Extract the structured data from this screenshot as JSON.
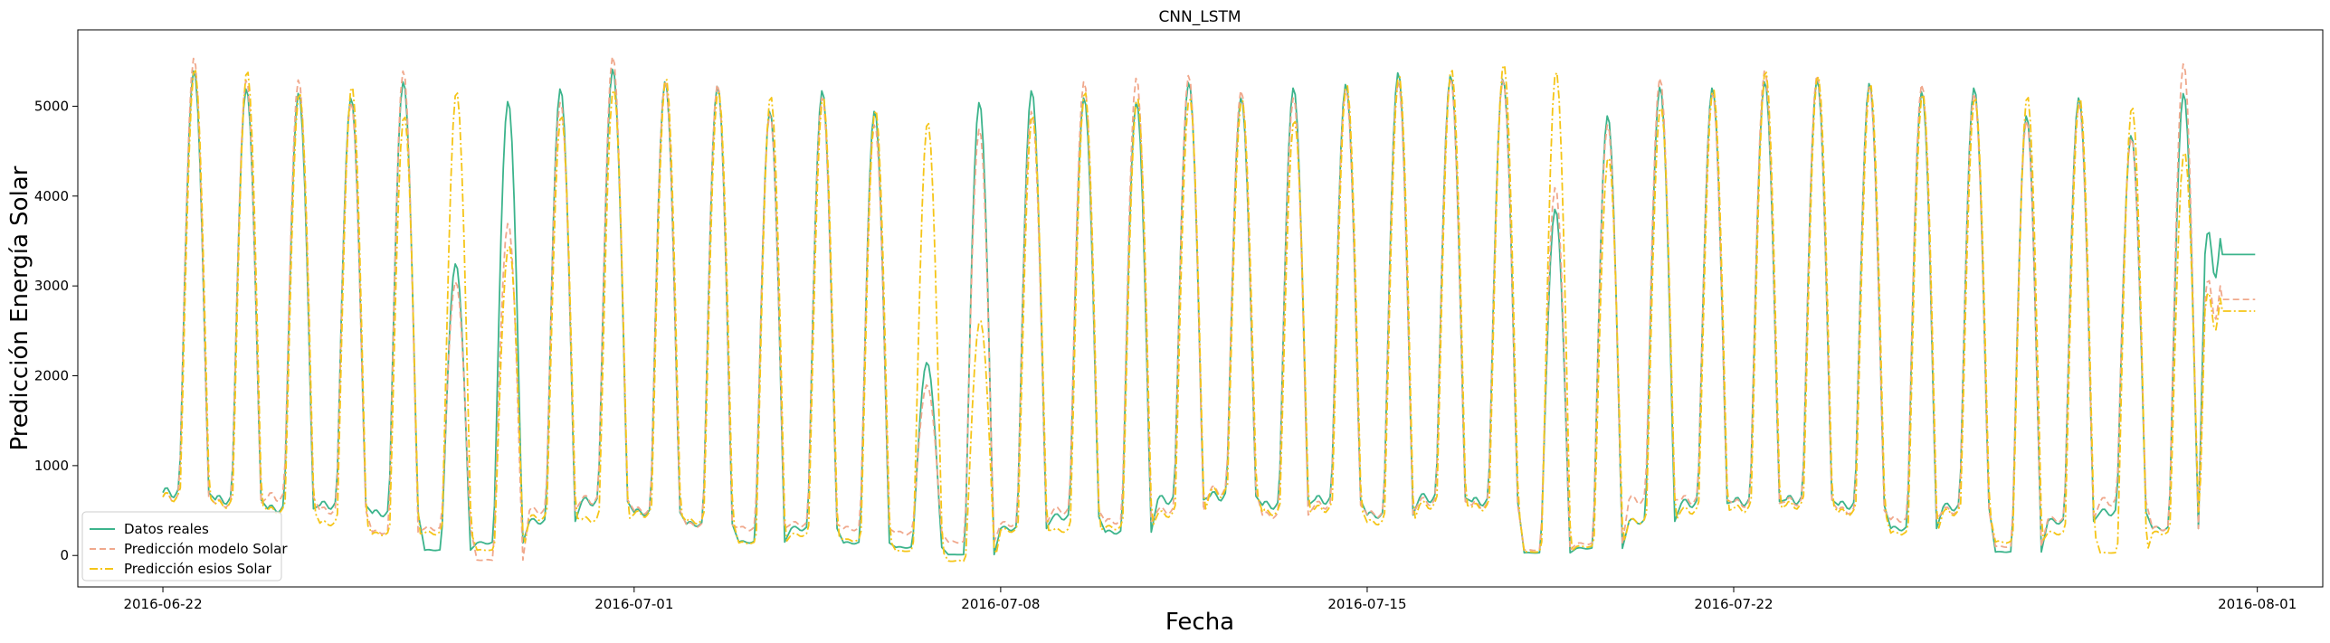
{
  "chart_data": {
    "type": "line",
    "title": "CNN_LSTM",
    "xlabel": "Fecha",
    "ylabel": "Predicción Energía Solar",
    "x_start": "2016-06-22 00:00",
    "x_end": "2016-07-31 23:00",
    "xlim": [
      "2016-06-20 09:00",
      "2016-08-02 06:00"
    ],
    "ylim": [
      -350,
      5850
    ],
    "x_ticks": [
      "2016-06-22",
      "2016-07-01",
      "2016-07-08",
      "2016-07-15",
      "2016-07-22",
      "2016-08-01"
    ],
    "y_ticks": [
      0,
      1000,
      2000,
      3000,
      4000,
      5000
    ],
    "grid": false,
    "legend_position": "lower-left",
    "series": [
      {
        "name": "Datos reales",
        "color": "#3cb48c",
        "style": "solid",
        "daily_peaks": [
          5400,
          5200,
          5150,
          5100,
          5280,
          3250,
          5060,
          5200,
          5420,
          5280,
          5230,
          4950,
          5180,
          4950,
          2150,
          5050,
          5180,
          5100,
          5050,
          5270,
          5100,
          5210,
          5250,
          5380,
          5350,
          5310,
          3860,
          4900,
          5220,
          5210,
          5280,
          5300,
          5260,
          5170,
          5210,
          4900,
          5100,
          4680,
          5150,
          3350
        ],
        "daily_minimums": [
          700,
          620,
          520,
          560,
          470,
          60,
          140,
          380,
          600,
          480,
          350,
          150,
          300,
          140,
          90,
          10,
          300,
          430,
          260,
          620,
          660,
          560,
          620,
          450,
          640,
          600,
          30,
          80,
          380,
          580,
          600,
          620,
          560,
          300,
          540,
          40,
          380,
          480,
          300,
          3350
        ]
      },
      {
        "name": "Predicción modelo Solar",
        "color": "#f0a88c",
        "style": "dashed",
        "daily_peaks": [
          5540,
          5300,
          5300,
          5050,
          5400,
          3050,
          3700,
          5050,
          5560,
          5290,
          5250,
          4920,
          5100,
          4800,
          1900,
          4750,
          4950,
          5280,
          5320,
          5350,
          5180,
          5100,
          5190,
          5280,
          5320,
          5300,
          4100,
          4800,
          5320,
          5150,
          5400,
          5350,
          5220,
          5250,
          5150,
          4850,
          5030,
          4650,
          5480,
          2850
        ],
        "daily_minimums": [
          650,
          580,
          650,
          500,
          260,
          300,
          -50,
          500,
          620,
          500,
          340,
          300,
          350,
          300,
          250,
          150,
          350,
          500,
          380,
          500,
          720,
          450,
          560,
          460,
          600,
          560,
          60,
          130,
          620,
          620,
          580,
          600,
          500,
          400,
          500,
          100,
          400,
          600,
          300,
          2850
        ]
      },
      {
        "name": "Predicción esios Solar",
        "color": "#f5c518",
        "style": "dashdot",
        "daily_peaks": [
          5420,
          5400,
          5150,
          5230,
          4900,
          5170,
          3450,
          4900,
          5200,
          5320,
          5180,
          5120,
          5100,
          4970,
          4830,
          2620,
          4900,
          5170,
          5100,
          5100,
          5080,
          4850,
          5250,
          5350,
          5420,
          5480,
          5400,
          4440,
          5000,
          5200,
          5400,
          5350,
          5250,
          5150,
          5100,
          5120,
          5100,
          5000,
          4500,
          2720
        ],
        "daily_minimums": [
          650,
          570,
          500,
          360,
          240,
          250,
          60,
          420,
          400,
          460,
          380,
          140,
          230,
          170,
          50,
          -60,
          280,
          280,
          310,
          460,
          700,
          480,
          520,
          370,
          560,
          540,
          40,
          100,
          380,
          500,
          520,
          560,
          480,
          250,
          480,
          150,
          250,
          30,
          250,
          2720
        ]
      }
    ]
  }
}
